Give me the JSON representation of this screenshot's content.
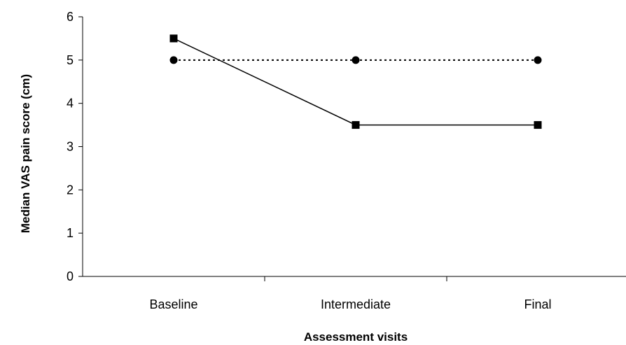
{
  "chart_data": {
    "type": "line",
    "title": "",
    "xlabel": "Assessment visits",
    "ylabel": "Median VAS pain score (cm)",
    "categories": [
      "Baseline",
      "Intermediate",
      "Final"
    ],
    "ylim": [
      0,
      6
    ],
    "yticks": [
      "0",
      "1",
      "2",
      "3",
      "4",
      "5",
      "6"
    ],
    "grid": false,
    "legend": "none",
    "series": [
      {
        "values": [
          5.5,
          3.5,
          3.5
        ],
        "line_style": "solid",
        "marker": "square",
        "color": "#000000"
      },
      {
        "values": [
          5.0,
          5.0,
          5.0
        ],
        "line_style": "dotted",
        "marker": "circle",
        "color": "#000000"
      }
    ]
  }
}
